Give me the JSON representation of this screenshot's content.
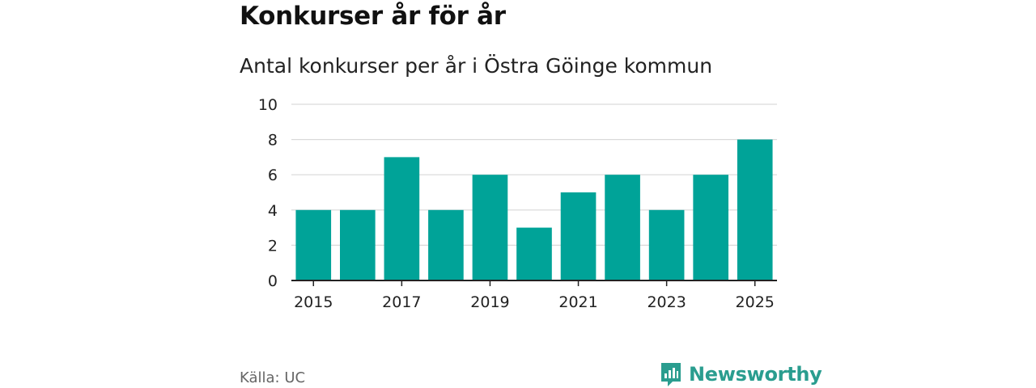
{
  "header": {
    "title": "Konkurser år för år",
    "subtitle": "Antal konkurser per år i Östra Göinge kommun"
  },
  "footer": {
    "source": "Källa: UC",
    "brand": "Newsworthy"
  },
  "colors": {
    "bar": "#00a398",
    "grid": "#d9d9d9",
    "axis": "#222222",
    "brand": "#2a9d8f"
  },
  "chart_data": {
    "type": "bar",
    "title": "Konkurser år för år",
    "subtitle": "Antal konkurser per år i Östra Göinge kommun",
    "xlabel": "",
    "ylabel": "",
    "categories": [
      2015,
      2016,
      2017,
      2018,
      2019,
      2020,
      2021,
      2022,
      2023,
      2024,
      2025
    ],
    "values": [
      4,
      4,
      7,
      4,
      6,
      3,
      5,
      6,
      4,
      6,
      8
    ],
    "ylim": [
      0,
      10
    ],
    "yticks": [
      0,
      2,
      4,
      6,
      8,
      10
    ],
    "xticks": [
      2015,
      2017,
      2019,
      2021,
      2023,
      2025
    ],
    "grid": true
  }
}
